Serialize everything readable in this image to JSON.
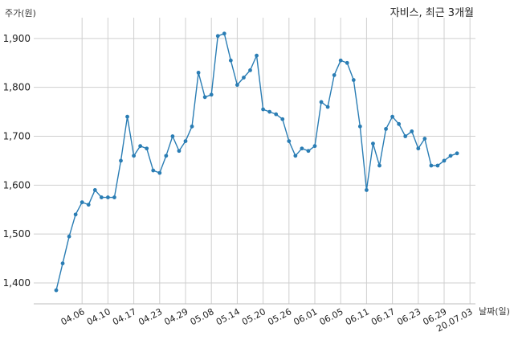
{
  "chart_data": {
    "type": "line",
    "title": "자비스, 최근 3개월",
    "xlabel": "날짜(일)",
    "ylabel": "주가(원)",
    "ylim": [
      1350,
      1960
    ],
    "grid": true,
    "y_ticks": [
      1400,
      1500,
      1600,
      1700,
      1800,
      1900
    ],
    "y_tick_labels": [
      "1,400",
      "1,500",
      "1,600",
      "1,700",
      "1,800",
      "1,900"
    ],
    "x_tick_labels": [
      "04.06",
      "04.10",
      "04.17",
      "04.23",
      "04.29",
      "05.08",
      "05.14",
      "05.20",
      "05.26",
      "06.01",
      "06.05",
      "06.11",
      "06.17",
      "06.23",
      "06.29",
      "20.07.03"
    ],
    "x_tick_indices": [
      4,
      8,
      12,
      16,
      20,
      24,
      28,
      32,
      36,
      40,
      44,
      48,
      52,
      56,
      60,
      64
    ],
    "series": [
      {
        "color": "#2a7db4",
        "values": [
          1385,
          1440,
          1495,
          1540,
          1565,
          1560,
          1590,
          1575,
          1575,
          1575,
          1650,
          1740,
          1660,
          1680,
          1675,
          1630,
          1625,
          1660,
          1700,
          1670,
          1690,
          1720,
          1830,
          1780,
          1785,
          1905,
          1910,
          1855,
          1805,
          1820,
          1835,
          1865,
          1755,
          1750,
          1745,
          1735,
          1690,
          1660,
          1675,
          1670,
          1680,
          1770,
          1760,
          1825,
          1855,
          1850,
          1815,
          1720,
          1590,
          1685,
          1640,
          1715,
          1740,
          1725,
          1700,
          1710,
          1675,
          1695,
          1640,
          1640,
          1650,
          1660,
          1665
        ]
      }
    ]
  }
}
